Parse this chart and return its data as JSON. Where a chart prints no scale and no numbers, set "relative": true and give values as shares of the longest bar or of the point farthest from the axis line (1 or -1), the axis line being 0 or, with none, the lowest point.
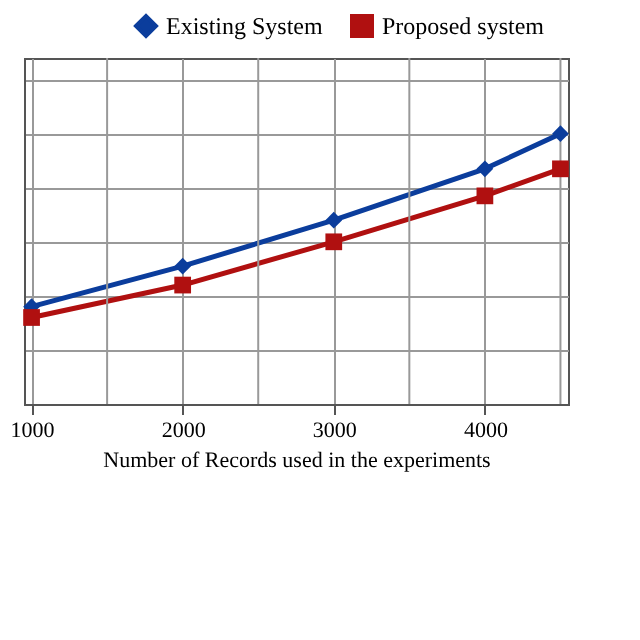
{
  "chart_data": {
    "type": "line",
    "xlabel": "Number of Records  used in the experiments",
    "relative": true,
    "x": [
      1000,
      2000,
      3000,
      4000,
      4500
    ],
    "xlim": [
      950,
      4550
    ],
    "xticks": [
      1000,
      {
        "value": 1500,
        "label": null
      },
      2000,
      {
        "value": 2500,
        "label": null
      },
      3000,
      {
        "value": 3500,
        "label": null
      },
      4000,
      {
        "value": 4500,
        "label": null
      }
    ],
    "series": [
      {
        "name": "Existing System",
        "color": "#0b3d9c",
        "marker": "diamond",
        "values": [
          0.36,
          0.51,
          0.68,
          0.87,
          1
        ]
      },
      {
        "name": "Proposed system",
        "color": "#b01010",
        "marker": "square",
        "values": [
          0.32,
          0.44,
          0.6,
          0.77,
          0.87
        ]
      }
    ],
    "grid": true,
    "legend": "top right",
    "tick_labels": "x"
  }
}
